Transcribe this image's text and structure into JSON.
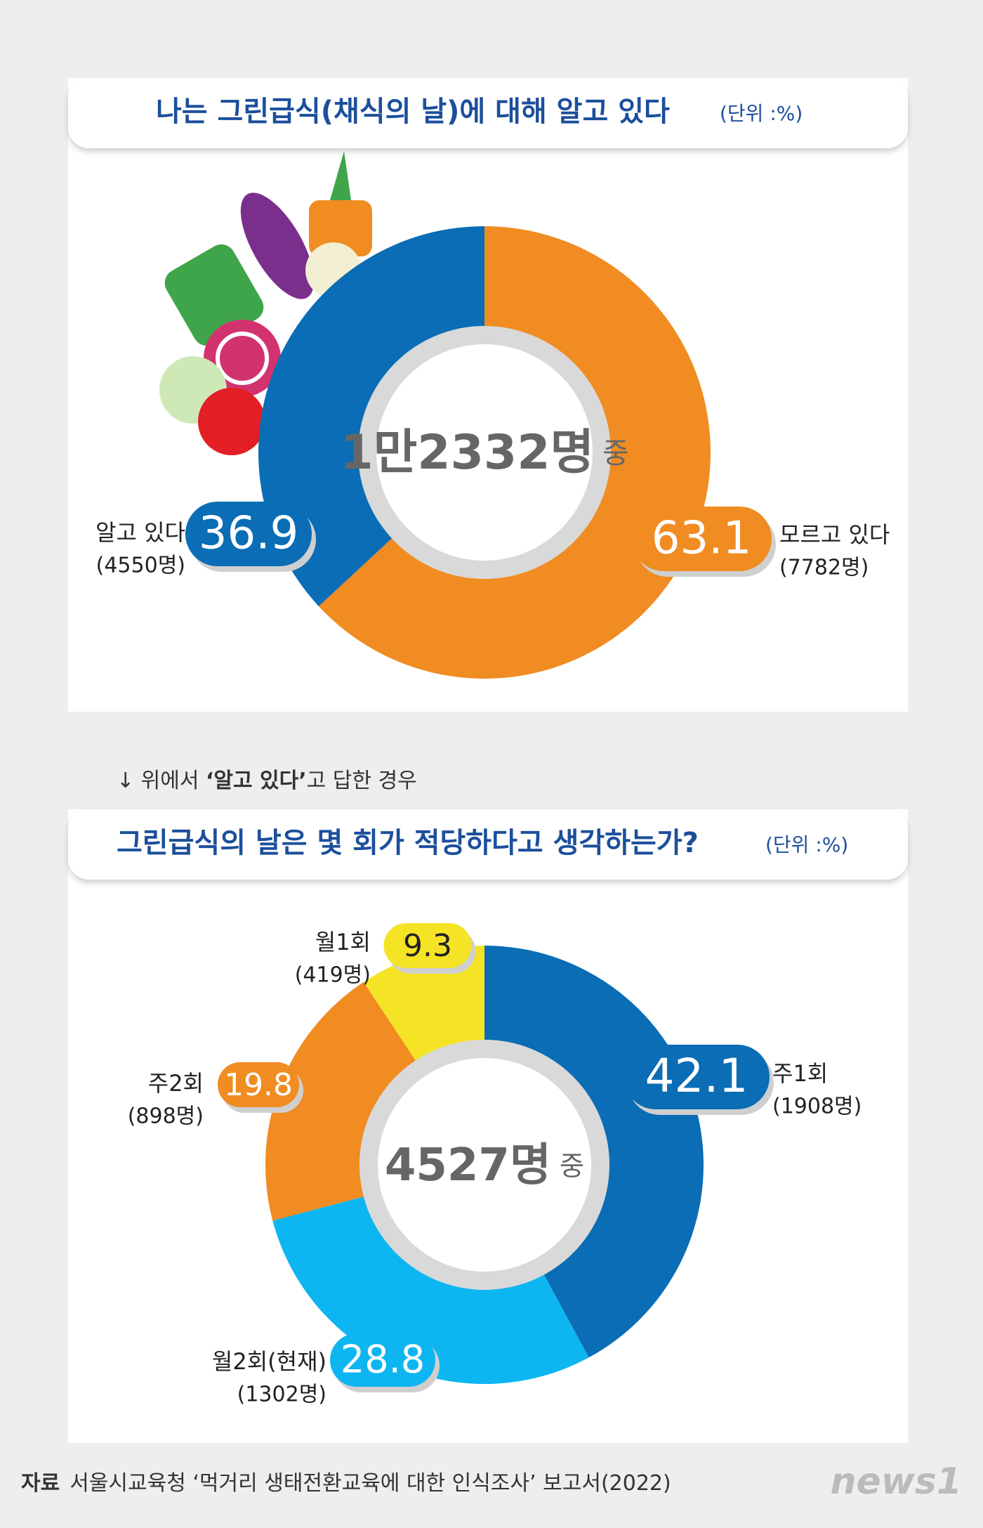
{
  "chart_data": [
    {
      "type": "pie",
      "title": "나는 그린급식(채식의 날)에 대해 알고 있다",
      "unit": "(단위 :%)",
      "center_label": "1만2332명",
      "center_suffix": "중",
      "categories": [
        "모르고 있다",
        "알고 있다"
      ],
      "values": [
        63.1,
        36.9
      ],
      "count_labels": [
        "(7782명)",
        "(4550명)"
      ],
      "colors": [
        "#f08c21",
        "#0a6db5"
      ]
    },
    {
      "type": "pie",
      "note": [
        "↓ 위에서 ",
        "‘알고 있다’",
        "고 답한 경우"
      ],
      "title": "그린급식의 날은 몇 회가 적당하다고 생각하는가?",
      "unit": "(단위 :%)",
      "center_label": "4527명",
      "center_suffix": "중",
      "categories": [
        "주1회",
        "월2회(현재)",
        "주2회",
        "월1회"
      ],
      "values": [
        42.1,
        28.8,
        19.8,
        9.3
      ],
      "count_labels": [
        "(1908명)",
        "(1302명)",
        "(898명)",
        "(419명)"
      ],
      "colors": [
        "#0a6db5",
        "#0db6f0",
        "#f08c21",
        "#f5e425"
      ]
    }
  ],
  "source": {
    "label": "자료",
    "text": "서울시교육청 ‘먹거리 생태전환교육에 대한 인식조사’ 보고서(2022)"
  },
  "logo": "news1"
}
